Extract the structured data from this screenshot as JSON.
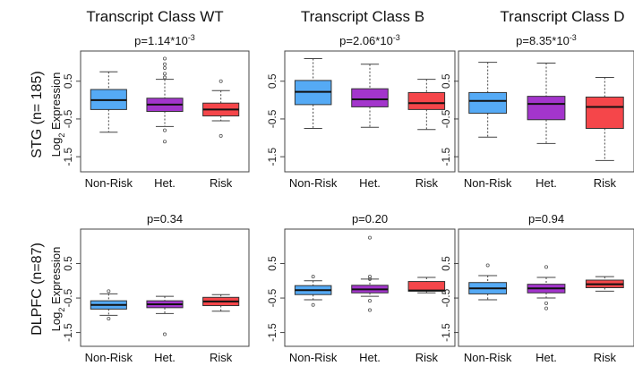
{
  "columns": [
    "Transcript Class WT",
    "Transcript Class B",
    "Transcript Class D"
  ],
  "rows": [
    {
      "label": "STG (n= 185)",
      "ylabel": "Log",
      "ylabel_sub": "2",
      "ylabel_rest": " Expression"
    },
    {
      "label": "DLPFC (n=87)",
      "ylabel": "Log",
      "ylabel_sub": "2",
      "ylabel_rest": " Expression"
    }
  ],
  "chart_data": [
    {
      "type": "box",
      "row": 0,
      "col": 0,
      "title": "p=1.14*10",
      "title_sup": "-3",
      "categories": [
        "Non-Risk",
        "Het.",
        "Risk"
      ],
      "yticks": [
        "0.5",
        "-0.5",
        "-1.5"
      ],
      "ylim": [
        -1.9,
        1.3
      ],
      "ytick_values": [
        0.5,
        -0.5,
        -1.5
      ],
      "colors": [
        "#55aaf5",
        "#a335cc",
        "#f5464a"
      ],
      "boxes": [
        {
          "whislo": -0.85,
          "q1": -0.25,
          "med": 0.0,
          "q3": 0.28,
          "whishi": 0.75,
          "fliers": []
        },
        {
          "whislo": -0.7,
          "q1": -0.3,
          "med": -0.12,
          "q3": 0.05,
          "whishi": 0.55,
          "fliers": [
            1.1,
            0.95,
            0.85,
            0.7,
            0.6,
            -0.8,
            -1.1
          ]
        },
        {
          "whislo": -0.55,
          "q1": -0.42,
          "med": -0.25,
          "q3": -0.08,
          "whishi": 0.25,
          "fliers": [
            0.5,
            -0.95
          ]
        }
      ]
    },
    {
      "type": "box",
      "row": 0,
      "col": 1,
      "title": "p=2.06*10",
      "title_sup": "-3",
      "categories": [
        "Non-Risk",
        "Het.",
        "Risk"
      ],
      "yticks": [
        "0.5",
        "-0.5",
        "-1.5"
      ],
      "ylim": [
        -1.9,
        1.3
      ],
      "ytick_values": [
        0.5,
        -0.5,
        -1.5
      ],
      "colors": [
        "#55aaf5",
        "#a335cc",
        "#f5464a"
      ],
      "boxes": [
        {
          "whislo": -0.75,
          "q1": -0.12,
          "med": 0.22,
          "q3": 0.52,
          "whishi": 1.1,
          "fliers": []
        },
        {
          "whislo": -0.72,
          "q1": -0.18,
          "med": 0.02,
          "q3": 0.3,
          "whishi": 0.95,
          "fliers": []
        },
        {
          "whislo": -0.78,
          "q1": -0.25,
          "med": -0.08,
          "q3": 0.2,
          "whishi": 0.55,
          "fliers": []
        }
      ]
    },
    {
      "type": "box",
      "row": 0,
      "col": 2,
      "title": "p=8.35*10",
      "title_sup": "-3",
      "categories": [
        "Non-Risk",
        "Het.",
        "Risk"
      ],
      "yticks": [
        "0.5",
        "-0.5",
        "-1.5"
      ],
      "ylim": [
        -1.9,
        1.3
      ],
      "ytick_values": [
        0.5,
        -0.5,
        -1.5
      ],
      "colors": [
        "#55aaf5",
        "#a335cc",
        "#f5464a"
      ],
      "boxes": [
        {
          "whislo": -0.98,
          "q1": -0.35,
          "med": -0.02,
          "q3": 0.2,
          "whishi": 1.0,
          "fliers": []
        },
        {
          "whislo": -1.15,
          "q1": -0.52,
          "med": -0.1,
          "q3": 0.1,
          "whishi": 0.98,
          "fliers": []
        },
        {
          "whislo": -1.6,
          "q1": -0.75,
          "med": -0.18,
          "q3": 0.08,
          "whishi": 0.6,
          "fliers": []
        }
      ]
    },
    {
      "type": "box",
      "row": 1,
      "col": 0,
      "title": "p=0.34",
      "title_sup": "",
      "categories": [
        "Non-Risk",
        "Het.",
        "Risk"
      ],
      "yticks": [
        "0.5",
        "-0.5",
        "-1.5"
      ],
      "ylim": [
        -1.9,
        1.5
      ],
      "ytick_values": [
        0.5,
        -0.5,
        -1.5
      ],
      "colors": [
        "#55aaf5",
        "#a335cc",
        "#f5464a"
      ],
      "boxes": [
        {
          "whislo": -1.0,
          "q1": -0.82,
          "med": -0.7,
          "q3": -0.58,
          "whishi": -0.38,
          "fliers": [
            -0.3,
            -1.1
          ]
        },
        {
          "whislo": -0.95,
          "q1": -0.78,
          "med": -0.68,
          "q3": -0.58,
          "whishi": -0.45,
          "fliers": [
            -1.55
          ]
        },
        {
          "whislo": -0.88,
          "q1": -0.72,
          "med": -0.6,
          "q3": -0.48,
          "whishi": -0.4,
          "fliers": []
        }
      ]
    },
    {
      "type": "box",
      "row": 1,
      "col": 1,
      "title": "p=0.20",
      "title_sup": "",
      "categories": [
        "Non-Risk",
        "Het.",
        "Risk"
      ],
      "yticks": [
        "0.5",
        "-0.5",
        "-1.5"
      ],
      "ylim": [
        -1.9,
        1.5
      ],
      "ytick_values": [
        0.5,
        -0.5,
        -1.5
      ],
      "colors": [
        "#55aaf5",
        "#a335cc",
        "#f5464a"
      ],
      "boxes": [
        {
          "whislo": -0.55,
          "q1": -0.4,
          "med": -0.27,
          "q3": -0.14,
          "whishi": 0.0,
          "fliers": [
            0.12,
            -0.7
          ]
        },
        {
          "whislo": -0.45,
          "q1": -0.35,
          "med": -0.25,
          "q3": -0.13,
          "whishi": 0.05,
          "fliers": [
            1.25,
            0.12,
            0.05,
            -0.58,
            -0.85
          ]
        },
        {
          "whislo": -0.35,
          "q1": -0.3,
          "med": -0.28,
          "q3": -0.02,
          "whishi": 0.1,
          "fliers": []
        }
      ]
    },
    {
      "type": "box",
      "row": 1,
      "col": 2,
      "title": "p=0.94",
      "title_sup": "",
      "categories": [
        "Non-Risk",
        "Het.",
        "Risk"
      ],
      "yticks": [
        "0.5",
        "-0.5",
        "-1.5"
      ],
      "ylim": [
        -1.9,
        1.5
      ],
      "ytick_values": [
        0.5,
        -0.5,
        -1.5
      ],
      "colors": [
        "#55aaf5",
        "#a335cc",
        "#f5464a"
      ],
      "boxes": [
        {
          "whislo": -0.55,
          "q1": -0.38,
          "med": -0.22,
          "q3": -0.05,
          "whishi": 0.15,
          "fliers": [
            0.45
          ]
        },
        {
          "whislo": -0.5,
          "q1": -0.35,
          "med": -0.22,
          "q3": -0.1,
          "whishi": 0.1,
          "fliers": [
            0.4,
            -0.65,
            -0.8
          ]
        },
        {
          "whislo": -0.3,
          "q1": -0.2,
          "med": -0.1,
          "q3": 0.02,
          "whishi": 0.12,
          "fliers": []
        }
      ]
    }
  ]
}
